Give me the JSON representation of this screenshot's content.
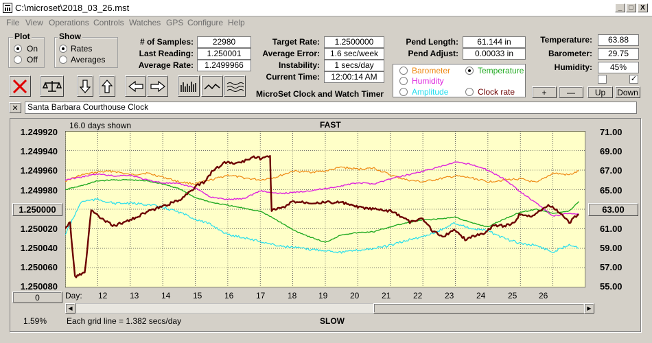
{
  "window": {
    "title": "C:\\microset\\2018_03_26.mst",
    "minimize": "_",
    "maximize": "□",
    "close": "X"
  },
  "menu": [
    "File",
    "View",
    "Operations",
    "Controls",
    "Watches",
    "GPS",
    "Configure",
    "Help"
  ],
  "plot_group": {
    "title": "Plot",
    "on": "On",
    "off": "Off",
    "selected": "On"
  },
  "show_group": {
    "title": "Show",
    "rates": "Rates",
    "averages": "Averages",
    "selected": "Rates"
  },
  "stats": {
    "samples_label": "# of Samples:",
    "samples": "22980",
    "last_label": "Last Reading:",
    "last": "1.250001",
    "avg_label": "Average Rate:",
    "avg": "1.2499966"
  },
  "rates": {
    "target_label": "Target Rate:",
    "target": "1.2500000",
    "avgerr_label": "Average Error:",
    "avgerr": "1.6 sec/week",
    "instab_label": "Instability:",
    "instab": "1 secs/day",
    "time_label": "Current Time:",
    "time": "12:00:14 AM"
  },
  "pend": {
    "length_label": "Pend Length:",
    "length": "61.144 in",
    "adjust_label": "Pend Adjust:",
    "adjust": "0.00033 in"
  },
  "env": {
    "temp_label": "Temperature:",
    "temp": "63.88",
    "baro_label": "Barometer:",
    "baro": "29.75",
    "hum_label": "Humidity:",
    "hum": "45%"
  },
  "legend": {
    "barometer": "Barometer",
    "temperature": "Temperature",
    "humidity": "Humidity",
    "amplitude": "Amplitude",
    "clockrate": "Clock rate",
    "selected": "Temperature"
  },
  "env_buttons": {
    "plus": "+",
    "minus": "—",
    "up": "Up",
    "down": "Down"
  },
  "checks": {
    "left": "",
    "right": "✓"
  },
  "app_caption": "MicroSet Clock and Watch Timer",
  "clock_name": "Santa Barbara Courthouse Clock",
  "close_clock": "✕",
  "colors": {
    "plot_bg": "#ffffc8",
    "rate": "#6b0000",
    "temperature": "#22aa22",
    "humidity": "#dd22dd",
    "barometer": "#ee8811",
    "amplitude": "#22ddee"
  },
  "chart_data": {
    "type": "line",
    "top_label": "FAST",
    "bottom_label": "SLOW",
    "days_shown": "16.0 days shown",
    "grid_note": "Each grid line = 1.382 secs/day",
    "left_axis": [
      "1.249920",
      "1.249940",
      "1.249960",
      "1.249980",
      "1.250000",
      "1.250020",
      "1.250040",
      "1.250060",
      "1.250080"
    ],
    "right_axis": [
      "71.00",
      "69.00",
      "67.00",
      "65.00",
      "63.00",
      "61.00",
      "59.00",
      "57.00",
      "55.00"
    ],
    "center_left_button": "1.250000",
    "center_right_button": "63.00",
    "bottom_left_button": "0",
    "bottom_left_pct": "1.59%",
    "day_prefix": "Day:",
    "days": [
      "12",
      "13",
      "14",
      "15",
      "16",
      "17",
      "18",
      "19",
      "20",
      "21",
      "22",
      "23",
      "24",
      "25",
      "26"
    ],
    "x_range": [
      11.0,
      27.0
    ],
    "y_range_left": [
      1.25008,
      1.24992
    ],
    "y_range_right": [
      55,
      71
    ],
    "series": [
      {
        "name": "Barometer",
        "axis": "right",
        "color": "#ee8811",
        "x": [
          11.0,
          11.5,
          12.0,
          12.5,
          13.0,
          13.5,
          14.0,
          14.5,
          15.0,
          15.5,
          16.0,
          16.5,
          17.0,
          17.5,
          18.0,
          18.5,
          19.0,
          19.5,
          20.0,
          20.5,
          21.0,
          21.5,
          22.0,
          22.5,
          23.0,
          23.5,
          24.0,
          24.5,
          25.0,
          25.5,
          26.0,
          26.5,
          26.8
        ],
        "y": [
          65.9,
          66.5,
          66.8,
          66.9,
          66.5,
          66.7,
          66.3,
          65.8,
          65.6,
          66.0,
          66.5,
          66.2,
          66.0,
          66.3,
          66.9,
          66.8,
          66.9,
          67.3,
          67.1,
          67.2,
          66.5,
          66.0,
          65.8,
          66.1,
          66.4,
          66.2,
          65.8,
          66.0,
          66.1,
          65.7,
          66.7,
          66.5,
          66.9
        ]
      },
      {
        "name": "Temperature",
        "axis": "right",
        "color": "#22aa22",
        "x": [
          11.0,
          11.5,
          12.0,
          12.5,
          13.0,
          13.5,
          14.0,
          14.5,
          15.0,
          15.5,
          16.0,
          16.5,
          17.0,
          17.5,
          18.0,
          18.5,
          19.0,
          19.5,
          20.0,
          20.5,
          21.0,
          21.5,
          22.0,
          22.5,
          23.0,
          23.5,
          24.0,
          24.5,
          25.0,
          25.5,
          26.0,
          26.5,
          26.8
        ],
        "y": [
          65.0,
          65.4,
          65.9,
          66.0,
          66.0,
          65.9,
          65.6,
          65.1,
          64.2,
          63.7,
          63.4,
          63.1,
          62.8,
          61.9,
          60.9,
          60.2,
          59.6,
          60.4,
          60.6,
          60.7,
          61.2,
          61.6,
          61.9,
          62.0,
          62.2,
          61.6,
          61.2,
          62.0,
          62.7,
          63.0,
          62.6,
          62.8,
          63.8
        ]
      },
      {
        "name": "Humidity",
        "axis": "right",
        "color": "#dd22dd",
        "x": [
          11.0,
          11.5,
          12.0,
          12.5,
          13.0,
          13.5,
          14.0,
          14.5,
          15.0,
          15.5,
          16.0,
          16.5,
          17.0,
          17.5,
          18.0,
          18.5,
          19.0,
          19.5,
          20.0,
          20.5,
          21.0,
          21.5,
          22.0,
          22.5,
          23.0,
          23.5,
          24.0,
          24.5,
          25.0,
          25.5,
          26.0,
          26.5,
          26.8
        ],
        "y": [
          66.0,
          66.3,
          66.6,
          66.4,
          66.5,
          66.0,
          65.7,
          65.6,
          65.2,
          64.2,
          64.0,
          64.1,
          64.9,
          64.6,
          64.7,
          64.9,
          65.1,
          65.4,
          65.7,
          65.6,
          66.1,
          66.5,
          66.9,
          67.3,
          67.8,
          67.6,
          67.0,
          66.1,
          64.8,
          63.6,
          62.3,
          62.6,
          62.5
        ]
      },
      {
        "name": "Amplitude",
        "axis": "right",
        "color": "#22ddee",
        "x": [
          11.0,
          11.5,
          12.0,
          12.5,
          13.0,
          13.5,
          14.0,
          14.5,
          15.0,
          15.5,
          16.0,
          16.5,
          17.0,
          17.5,
          18.0,
          18.5,
          19.0,
          19.5,
          20.0,
          20.5,
          21.0,
          21.5,
          22.0,
          22.5,
          23.0,
          23.5,
          24.0,
          24.5,
          25.0,
          25.5,
          26.0,
          26.5,
          26.8
        ],
        "y": [
          60.4,
          63.8,
          64.0,
          63.6,
          63.6,
          63.5,
          63.2,
          62.7,
          62.0,
          61.4,
          60.4,
          60.1,
          59.7,
          59.3,
          59.1,
          58.9,
          58.8,
          58.6,
          58.8,
          59.0,
          59.3,
          59.8,
          60.2,
          60.8,
          61.6,
          61.0,
          60.8,
          60.0,
          59.5,
          59.3,
          58.6,
          59.4,
          59.1
        ]
      },
      {
        "name": "Clock rate",
        "axis": "left",
        "color": "#6b0000",
        "x": [
          11.0,
          11.15,
          11.3,
          11.45,
          11.6,
          11.8,
          12.2,
          12.5,
          13.0,
          13.5,
          14.0,
          14.5,
          15.0,
          15.3,
          15.5,
          15.9,
          16.2,
          16.5,
          16.8,
          17.0,
          17.3,
          17.35,
          17.5,
          17.8,
          18.0,
          18.5,
          19.0,
          19.5,
          20.0,
          20.5,
          21.0,
          21.3,
          21.6,
          22.0,
          22.3,
          22.6,
          23.0,
          23.3,
          23.6,
          23.9,
          24.2,
          24.5,
          24.8,
          25.0,
          25.3,
          25.6,
          25.9,
          26.2,
          26.5,
          26.8
        ],
        "y": [
          1.250019,
          1.250014,
          1.250069,
          1.250066,
          1.250066,
          1.250001,
          1.250012,
          1.250017,
          1.250011,
          1.250003,
          1.249997,
          1.249991,
          1.249977,
          1.249972,
          1.249962,
          1.249952,
          1.249953,
          1.249951,
          1.249946,
          1.249948,
          1.249946,
          1.250001,
          1.25,
          1.249997,
          1.249992,
          1.249993,
          1.249993,
          1.249993,
          1.249998,
          1.25,
          1.250002,
          1.250007,
          1.250013,
          1.25001,
          1.250022,
          1.250028,
          1.250021,
          1.250031,
          1.250027,
          1.250024,
          1.250016,
          1.250017,
          1.250014,
          1.250004,
          1.250008,
          1.250001,
          1.249996,
          1.250003,
          1.250014,
          1.250004
        ]
      }
    ]
  }
}
